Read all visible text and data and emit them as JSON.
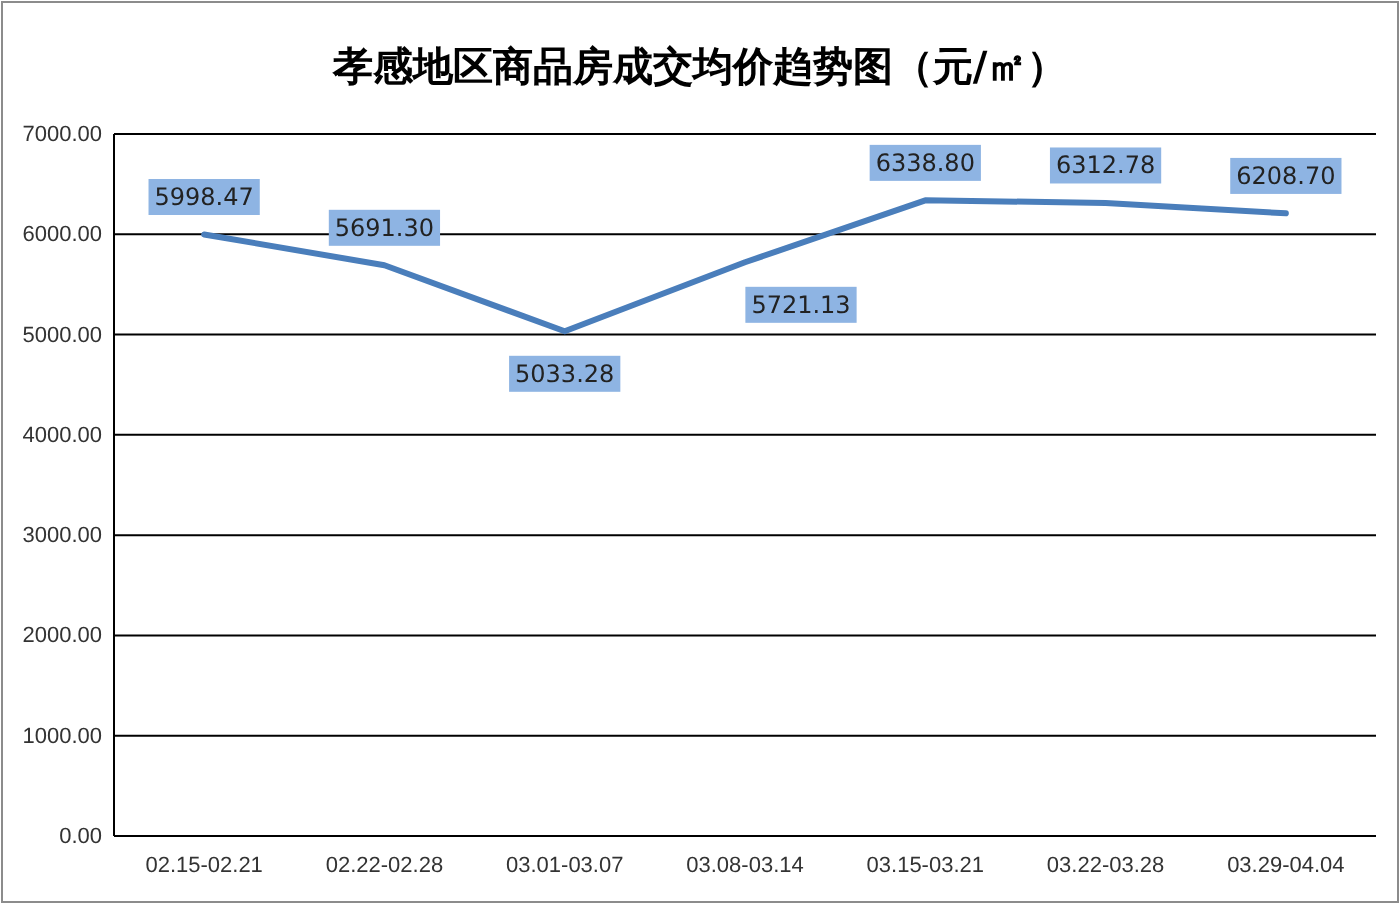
{
  "chart_data": {
    "type": "line",
    "title": "孝感地区商品房成交均价趋势图（元/㎡）",
    "categories": [
      "02.15-02.21",
      "02.22-02.28",
      "03.01-03.07",
      "03.08-03.14",
      "03.15-03.21",
      "03.22-03.28",
      "03.29-04.04"
    ],
    "series": [
      {
        "color": "#4a7ebb",
        "values": [
          5998.47,
          5691.3,
          5033.28,
          5721.13,
          6338.8,
          6312.78,
          6208.7
        ],
        "value_labels": [
          "5998.47",
          "5691.30",
          "5033.28",
          "5721.13",
          "6338.80",
          "6312.78",
          "6208.70"
        ]
      }
    ],
    "ylim": [
      0,
      7000
    ],
    "yticks": [
      {
        "value": 0,
        "label": "0.00"
      },
      {
        "value": 1000,
        "label": "1000.00"
      },
      {
        "value": 2000,
        "label": "2000.00"
      },
      {
        "value": 3000,
        "label": "3000.00"
      },
      {
        "value": 4000,
        "label": "4000.00"
      },
      {
        "value": 5000,
        "label": "5000.00"
      },
      {
        "value": 6000,
        "label": "6000.00"
      },
      {
        "value": 7000,
        "label": "7000.00"
      }
    ],
    "grid": "y",
    "marker": "none",
    "line_style": "solid"
  }
}
